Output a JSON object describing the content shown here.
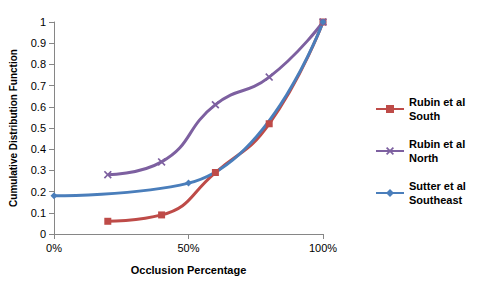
{
  "chart_data": {
    "type": "line",
    "x_label": "Occlusion Percentage",
    "y_label": "Cumulative Distribution Function",
    "xlim": [
      0,
      100
    ],
    "xticks": [
      {
        "value": 0,
        "label": "0%"
      },
      {
        "value": 50,
        "label": "50%"
      },
      {
        "value": 100,
        "label": "100%"
      }
    ],
    "ylim": [
      0,
      1
    ],
    "yticks": [
      0,
      0.1,
      0.2,
      0.3,
      0.4,
      0.5,
      0.6,
      0.7,
      0.8,
      0.9,
      1
    ],
    "grid": false,
    "legend": "right",
    "series": [
      {
        "name": "Rubin et al South",
        "color": "#be4b48",
        "marker": "square",
        "x": [
          20,
          40,
          60,
          80,
          100
        ],
        "values": [
          0.06,
          0.09,
          0.29,
          0.52,
          1.0
        ]
      },
      {
        "name": "Rubin et al North",
        "color": "#7d60a0",
        "marker": "x",
        "x": [
          20,
          40,
          60,
          80,
          100
        ],
        "values": [
          0.28,
          0.34,
          0.61,
          0.74,
          1.0
        ]
      },
      {
        "name": "Sutter et al Southeast",
        "color": "#4a7ebb",
        "marker": "diamond",
        "x": [
          0,
          50,
          100
        ],
        "values": [
          0.18,
          0.24,
          1.0
        ]
      }
    ]
  }
}
